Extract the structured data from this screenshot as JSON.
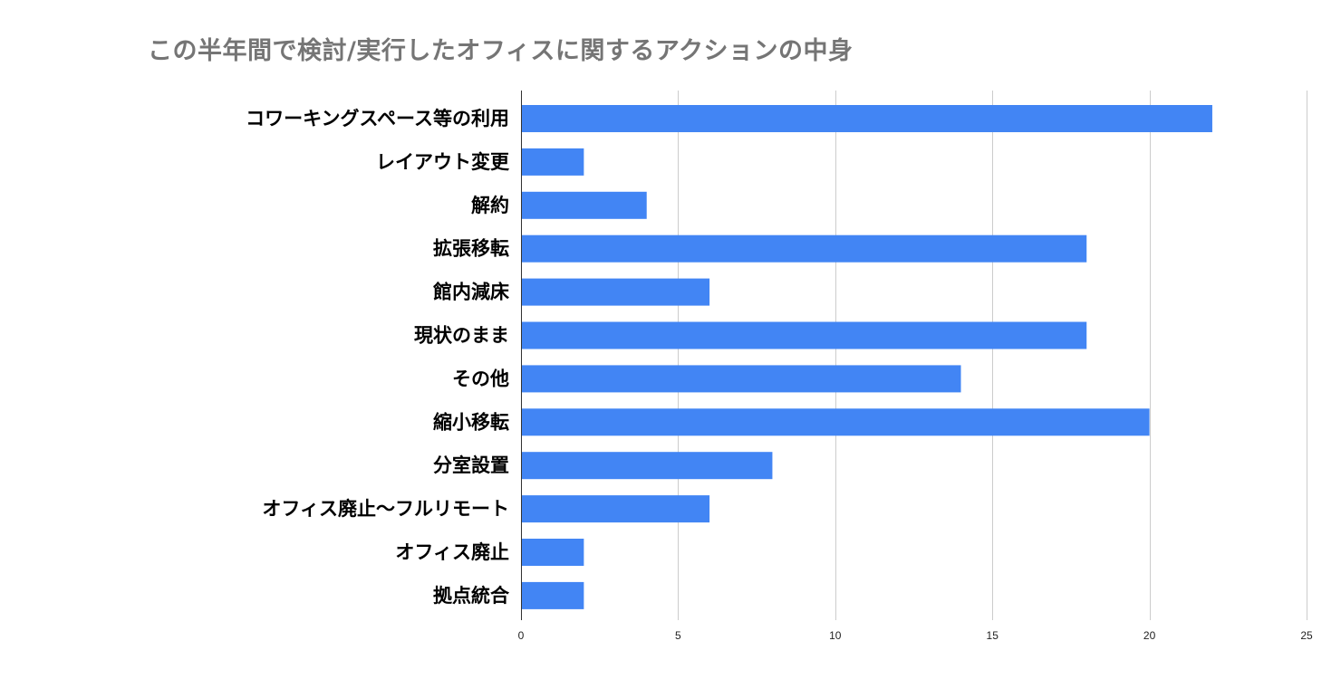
{
  "chart_data": {
    "type": "bar",
    "orientation": "horizontal",
    "title": "この半年間で検討/実行したオフィスに関するアクションの中身",
    "xlabel": "",
    "ylabel": "",
    "categories": [
      "コワーキングスペース等の利用",
      "レイアウト変更",
      "解約",
      "拡張移転",
      "館内減床",
      "現状のまま",
      "その他",
      "縮小移転",
      "分室設置",
      "オフィス廃止～フルリモート",
      "オフィス廃止",
      "拠点統合"
    ],
    "values": [
      22,
      2,
      4,
      18,
      6,
      18,
      14,
      20,
      8,
      6,
      2,
      2
    ],
    "xlim": [
      0,
      25
    ],
    "ticks": [
      0,
      5,
      10,
      15,
      20,
      25
    ],
    "tick_labels": [
      "0",
      "5",
      "10",
      "15",
      "20",
      "25"
    ],
    "grid": true,
    "legend": "none",
    "bar_color": "#4285f4",
    "grid_color": "#cccccc",
    "axis_color": "#333333"
  }
}
